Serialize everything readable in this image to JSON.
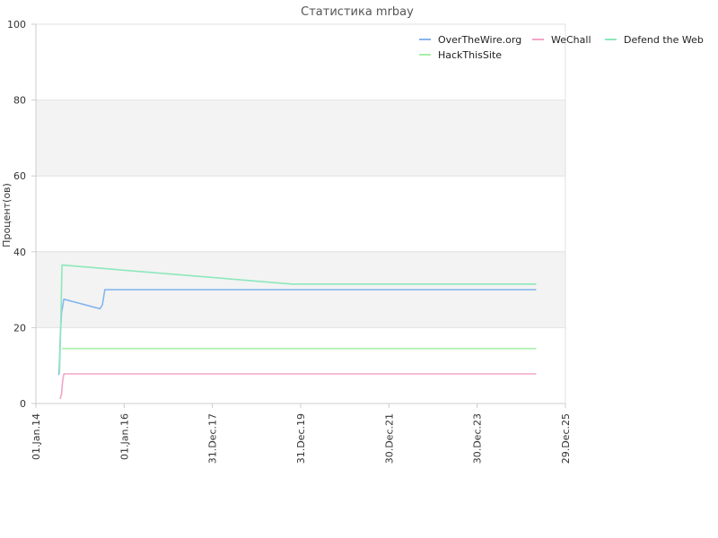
{
  "chart_data": {
    "type": "line",
    "title": "Статистика mrbay",
    "xlabel": "",
    "ylabel": "Процент(ов)",
    "ylim": [
      0,
      100
    ],
    "yticks": [
      0,
      20,
      40,
      60,
      80,
      100
    ],
    "xlim": [
      "2014-01-01",
      "2025-12-29"
    ],
    "xticks": [
      {
        "label": "01.Jan.14",
        "date": "2014-01-01"
      },
      {
        "label": "01.Jan.16",
        "date": "2016-01-01"
      },
      {
        "label": "31.Dec.17",
        "date": "2017-12-31"
      },
      {
        "label": "31.Dec.19",
        "date": "2019-12-31"
      },
      {
        "label": "30.Dec.21",
        "date": "2021-12-30"
      },
      {
        "label": "30.Dec.23",
        "date": "2023-12-30"
      },
      {
        "label": "29.Dec.25",
        "date": "2025-12-29"
      }
    ],
    "grid": true,
    "banded_background": true,
    "legend_position": "top-right",
    "series": [
      {
        "name": "OverTheWire.org",
        "color": "#86b6ee",
        "points": [
          [
            "2014-07-10",
            7.5
          ],
          [
            "2014-07-15",
            11.0
          ],
          [
            "2014-07-22",
            18.0
          ],
          [
            "2014-08-01",
            24.0
          ],
          [
            "2014-08-20",
            27.5
          ],
          [
            "2015-06-15",
            25.0
          ],
          [
            "2015-07-05",
            26.0
          ],
          [
            "2015-07-25",
            30.0
          ],
          [
            "2025-05-01",
            30.0
          ]
        ]
      },
      {
        "name": "WeChall",
        "color": "#f0a6c8",
        "points": [
          [
            "2014-07-20",
            1.2
          ],
          [
            "2014-08-01",
            2.5
          ],
          [
            "2014-08-10",
            6.0
          ],
          [
            "2014-08-20",
            7.8
          ],
          [
            "2025-05-01",
            7.8
          ]
        ]
      },
      {
        "name": "Defend the Web",
        "color": "#8ce8bb",
        "points": [
          [
            "2014-07-15",
            8.0
          ],
          [
            "2014-07-25",
            20.0
          ],
          [
            "2014-08-05",
            36.5
          ],
          [
            "2019-10-20",
            31.5
          ],
          [
            "2025-05-01",
            31.5
          ]
        ]
      },
      {
        "name": "HackThisSite",
        "color": "#a8eea8",
        "points": [
          [
            "2014-08-05",
            14.5
          ],
          [
            "2025-05-01",
            14.5
          ]
        ]
      }
    ]
  }
}
